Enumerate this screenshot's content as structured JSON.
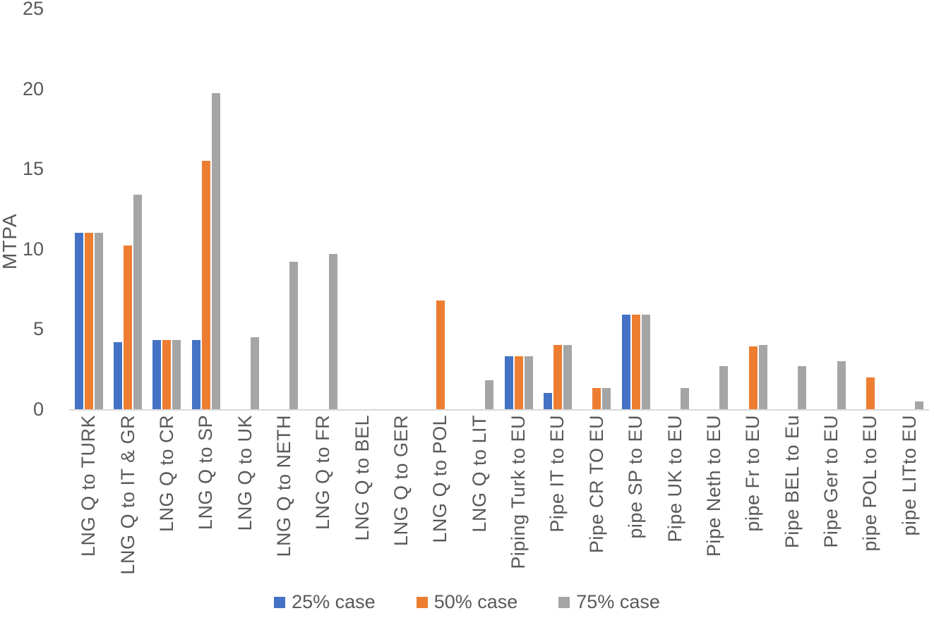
{
  "chart_data": {
    "type": "bar",
    "title": "",
    "xlabel": "",
    "ylabel": "MTPA",
    "ylim": [
      0,
      25
    ],
    "yticks": [
      0,
      5,
      10,
      15,
      20,
      25
    ],
    "grid": false,
    "legend_position": "bottom",
    "axis_line_color": "#D9D9D9",
    "text_color": "#595959",
    "categories": [
      "LNG Q to TURK",
      "LNG Q to IT & GR",
      "LNG Q to CR",
      "LNG Q to  SP",
      "LNG Q to UK",
      "LNG Q to NETH",
      "LNG Q to FR",
      "LNG Q to BEL",
      "LNG Q to GER",
      "LNG Q to POL",
      "LNG Q to LIT",
      "Piping Turk to EU",
      "Pipe IT to EU",
      "Pipe CR TO EU",
      "pipe SP to EU",
      "Pipe UK to EU",
      "Pipe Neth to EU",
      "pipe Fr to EU",
      "Pipe BEL to Eu",
      "Pipe Ger to EU",
      "pipe POL to EU",
      "pipe  LITto EU"
    ],
    "series": [
      {
        "name": "25% case",
        "color": "#4472C4",
        "values": [
          11.0,
          4.2,
          4.3,
          4.3,
          0,
          0,
          0,
          0,
          0,
          0,
          0,
          3.3,
          1.0,
          0,
          5.9,
          0,
          0,
          0,
          0,
          0,
          0,
          0
        ]
      },
      {
        "name": "50% case",
        "color": "#ED7D31",
        "values": [
          11.0,
          10.2,
          4.3,
          15.5,
          0,
          0,
          0,
          0,
          0,
          6.8,
          0,
          3.3,
          4.0,
          1.3,
          5.9,
          0,
          0,
          3.9,
          0,
          0,
          2.0,
          0
        ]
      },
      {
        "name": "75% case",
        "color": "#A5A5A5",
        "values": [
          11.0,
          13.4,
          4.3,
          19.7,
          4.5,
          9.2,
          9.7,
          0,
          0,
          0,
          1.8,
          3.3,
          4.0,
          1.3,
          5.9,
          1.3,
          2.7,
          4.0,
          2.7,
          3.0,
          0,
          0.5
        ]
      }
    ]
  }
}
